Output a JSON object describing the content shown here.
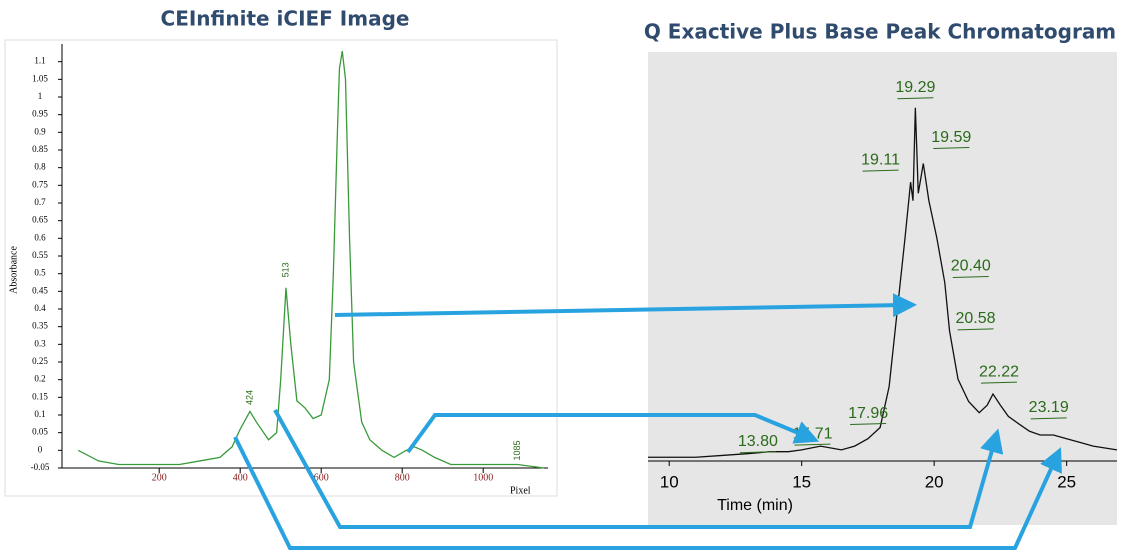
{
  "chart_data": [
    {
      "type": "line",
      "title": "CEInfinite iCIEF Image",
      "xlabel": "Pixel",
      "ylabel": "Absorbance",
      "x": [
        0,
        50,
        100,
        150,
        200,
        250,
        300,
        350,
        380,
        400,
        424,
        440,
        470,
        490,
        500,
        513,
        525,
        540,
        560,
        580,
        600,
        620,
        630,
        640,
        645,
        652,
        660,
        670,
        680,
        700,
        720,
        750,
        780,
        810,
        830,
        850,
        880,
        920,
        1000,
        1085,
        1150
      ],
      "values": [
        0,
        -0.03,
        -0.04,
        -0.04,
        -0.04,
        -0.04,
        -0.03,
        -0.02,
        0.01,
        0.06,
        0.11,
        0.08,
        0.03,
        0.05,
        0.2,
        0.46,
        0.3,
        0.14,
        0.12,
        0.09,
        0.1,
        0.2,
        0.5,
        0.9,
        1.08,
        1.13,
        1.05,
        0.6,
        0.25,
        0.08,
        0.03,
        0.0,
        -0.02,
        0.0,
        0.01,
        0.0,
        -0.02,
        -0.04,
        -0.04,
        -0.04,
        -0.05
      ],
      "color": "#3a9a3a",
      "xlim": [
        -40,
        1160
      ],
      "ylim": [
        -0.05,
        1.15
      ],
      "xticks": [
        200,
        400,
        600,
        800,
        1000
      ],
      "yticks": [
        -0.05,
        0,
        0.05,
        0.1,
        0.15,
        0.2,
        0.25,
        0.3,
        0.35,
        0.4,
        0.45,
        0.5,
        0.55,
        0.6,
        0.65,
        0.7,
        0.75,
        0.8,
        0.85,
        0.9,
        0.95,
        1,
        1.05,
        1.1
      ],
      "annotations": [
        {
          "text": "424",
          "x": 424,
          "y": 0.11
        },
        {
          "text": "513",
          "x": 513,
          "y": 0.46
        },
        {
          "text": "1085",
          "x": 1085,
          "y": -0.04
        }
      ]
    },
    {
      "type": "line",
      "title": "Q Exactive Plus Base Peak Chromatogram",
      "xlabel": "Time (min)",
      "x": [
        9.2,
        10,
        11,
        12,
        13,
        13.8,
        14.5,
        15,
        15.71,
        16.5,
        17,
        17.5,
        17.96,
        18.3,
        18.6,
        18.9,
        19.11,
        19.2,
        19.29,
        19.4,
        19.59,
        19.8,
        20.1,
        20.4,
        20.58,
        20.9,
        21.3,
        21.7,
        22,
        22.22,
        22.5,
        22.8,
        23.19,
        23.6,
        24,
        24.5,
        25,
        25.5,
        26,
        26.9
      ],
      "values": [
        1,
        1,
        1,
        1.5,
        2,
        2.5,
        2.5,
        3,
        4,
        3,
        4,
        6,
        9,
        20,
        40,
        60,
        75,
        70,
        95,
        72,
        80,
        70,
        60,
        48,
        35,
        22,
        16,
        13,
        15,
        18,
        15,
        12,
        10,
        8,
        7,
        7,
        6,
        5,
        4,
        3
      ],
      "color": "#111111",
      "xlim": [
        9.2,
        26.9
      ],
      "ylim": [
        0,
        110
      ],
      "xticks": [
        10,
        15,
        20,
        25
      ],
      "annotations": [
        {
          "text": "13.80",
          "x": 13.8,
          "y": 2.5
        },
        {
          "text": "15.71",
          "x": 15.71,
          "y": 4
        },
        {
          "text": "17.96",
          "x": 17.96,
          "y": 9
        },
        {
          "text": "19.11",
          "x": 19.11,
          "y": 75
        },
        {
          "text": "19.29",
          "x": 19.29,
          "y": 95
        },
        {
          "text": "19.59",
          "x": 19.59,
          "y": 80
        },
        {
          "text": "20.40",
          "x": 20.4,
          "y": 48
        },
        {
          "text": "20.58",
          "x": 20.58,
          "y": 35
        },
        {
          "text": "22.22",
          "x": 22.22,
          "y": 18
        },
        {
          "text": "23.19",
          "x": 23.19,
          "y": 10
        }
      ]
    }
  ]
}
